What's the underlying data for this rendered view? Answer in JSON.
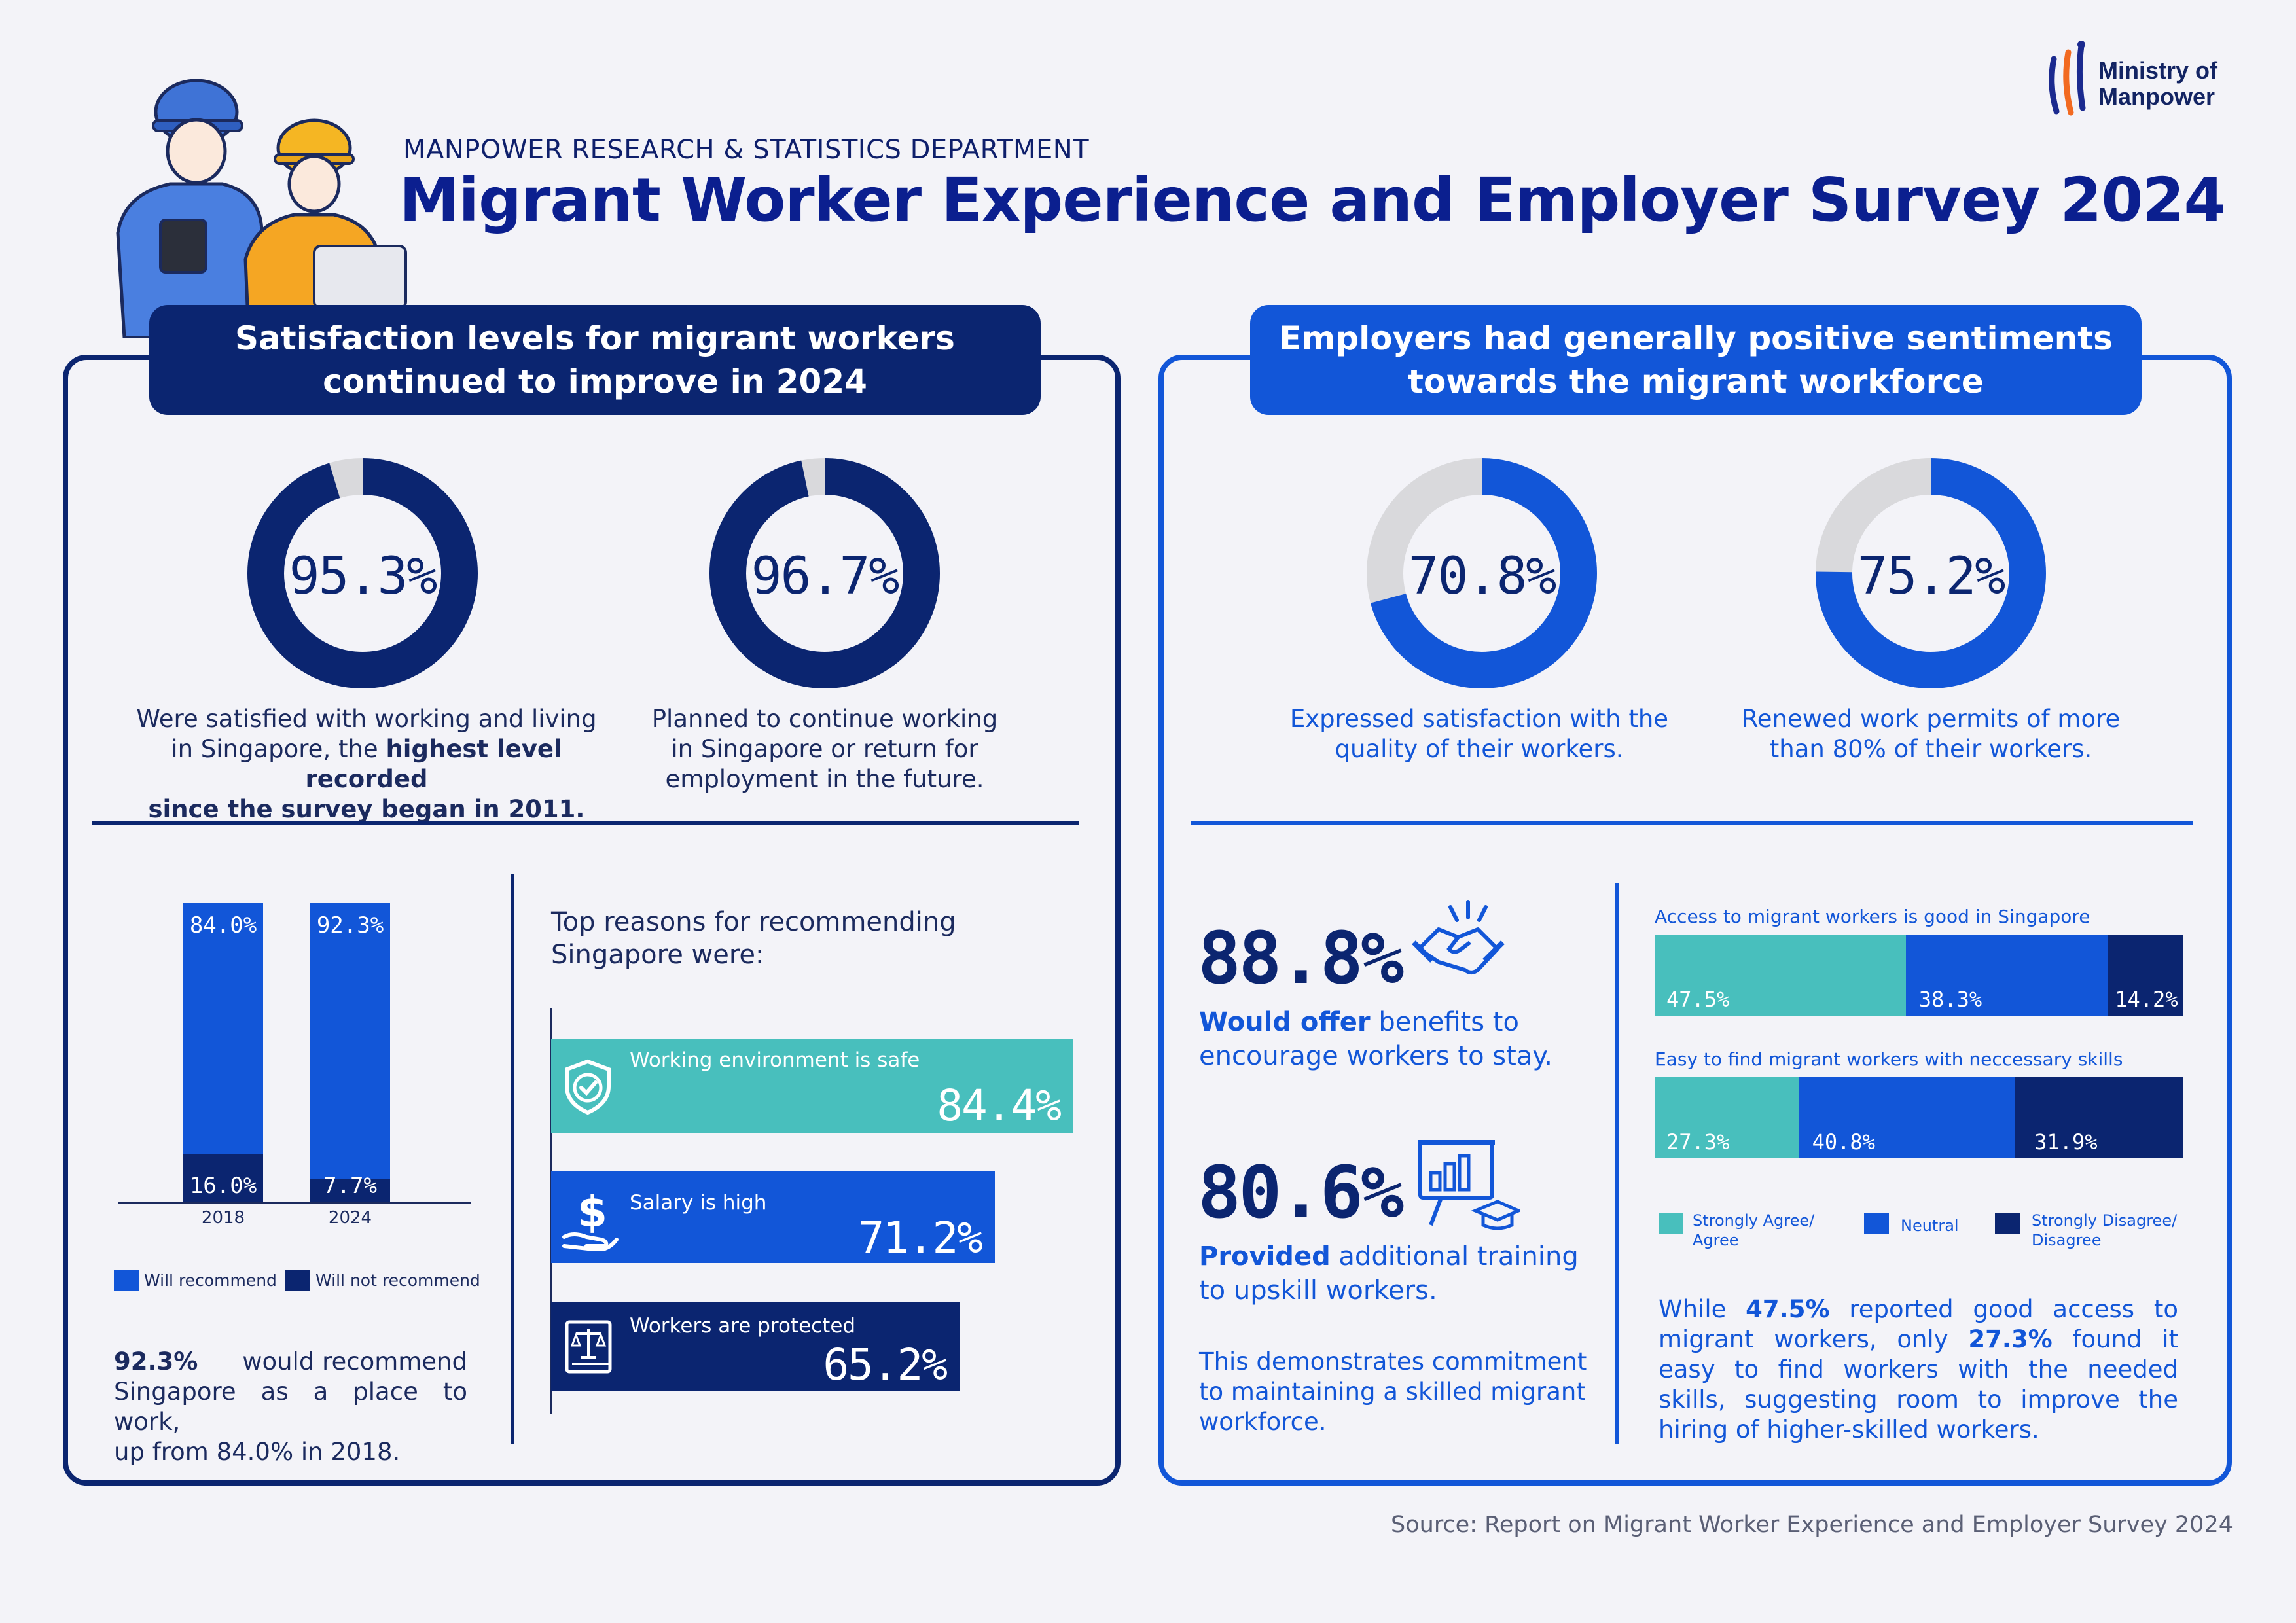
{
  "header": {
    "department": "MANPOWER RESEARCH & STATISTICS DEPARTMENT",
    "title": "Migrant Worker Experience and Employer Survey 2024",
    "logo_line1": "Ministry of",
    "logo_line2": "Manpower"
  },
  "colors": {
    "navy": "#0b2570",
    "royal_blue": "#1256d8",
    "teal": "#48bfbd",
    "gray": "#d9d9dc"
  },
  "left_panel": {
    "banner_line1": "Satisfaction levels for migrant workers",
    "banner_line2": "continued to improve in 2024",
    "donut1": {
      "value": "95.3%",
      "fraction": 0.953,
      "desc_line1": "Were satisfied with working and living",
      "desc_line2_pre": "in Singapore, the ",
      "desc_line2_bold": "highest level recorded",
      "desc_line3_bold": "since the survey began in 2011."
    },
    "donut2": {
      "value": "96.7%",
      "fraction": 0.967,
      "desc_line1": "Planned to continue working",
      "desc_line2": "in Singapore or return for",
      "desc_line3": "employment in the future."
    },
    "recommend_chart": {
      "bars": [
        {
          "year": "2018",
          "recommend": "84.0%",
          "recommend_value": 84.0,
          "not_recommend": "16.0%",
          "not_value": 16.0
        },
        {
          "year": "2024",
          "recommend": "92.3%",
          "recommend_value": 92.3,
          "not_recommend": "7.7%",
          "not_value": 7.7
        }
      ],
      "legend_recommend": "Will recommend",
      "legend_not": "Will not recommend"
    },
    "note_bold": "92.3%",
    "note_rest1": "would recommend",
    "note_line2": "Singapore as a place to work,",
    "note_line3": "up from 84.0% in 2018.",
    "reasons_title_line1": "Top reasons for recommending",
    "reasons_title_line2": "Singapore were:",
    "reasons": [
      {
        "label": "Working environment is safe",
        "value": "84.4%",
        "num": 84.4
      },
      {
        "label": "Salary is high",
        "value": "71.2%",
        "num": 71.2
      },
      {
        "label": "Workers are protected",
        "value": "65.2%",
        "num": 65.2
      }
    ]
  },
  "right_panel": {
    "banner_line1": "Employers had generally positive sentiments",
    "banner_line2": "towards the migrant workforce",
    "donut1": {
      "value": "70.8%",
      "fraction": 0.708,
      "desc_line1": "Expressed satisfaction with the",
      "desc_line2": "quality of their workers."
    },
    "donut2": {
      "value": "75.2%",
      "fraction": 0.752,
      "desc_line1": "Renewed work permits of more",
      "desc_line2": "than 80% of their workers."
    },
    "stat1": {
      "value": "88.8%",
      "desc_bold": "Would offer",
      "desc_rest": " benefits to",
      "desc_line2": "encourage workers to stay."
    },
    "stat2": {
      "value": "80.6%",
      "desc_bold": "Provided",
      "desc_rest": " additional training",
      "desc_line2": "to upskill workers."
    },
    "commitment_line1": "This demonstrates commitment",
    "commitment_line2": "to maintaining a skilled migrant",
    "commitment_line3": "workforce.",
    "stacked": [
      {
        "title": "Access to migrant workers is good in Singapore",
        "agree": "47.5%",
        "agree_num": 47.5,
        "neutral": "38.3%",
        "neutral_num": 38.3,
        "disagree": "14.2%",
        "disagree_num": 14.2
      },
      {
        "title": "Easy to find migrant workers with neccessary skills",
        "agree": "27.3%",
        "agree_num": 27.3,
        "neutral": "40.8%",
        "neutral_num": 40.8,
        "disagree": "31.9%",
        "disagree_num": 31.9
      }
    ],
    "legend": {
      "agree_line1": "Strongly Agree/",
      "agree_line2": "Agree",
      "neutral": "Neutral",
      "disagree_line1": "Strongly Disagree/",
      "disagree_line2": "Disagree"
    },
    "note": {
      "p1": "While ",
      "b1": "47.5%",
      "p2": " reported good access to migrant workers, only ",
      "b2": "27.3%",
      "p3": " found it easy to find workers with the needed skills, suggesting room to improve the hiring of higher-skilled workers."
    }
  },
  "source": "Source: Report on Migrant Worker Experience and Employer Survey 2024"
}
